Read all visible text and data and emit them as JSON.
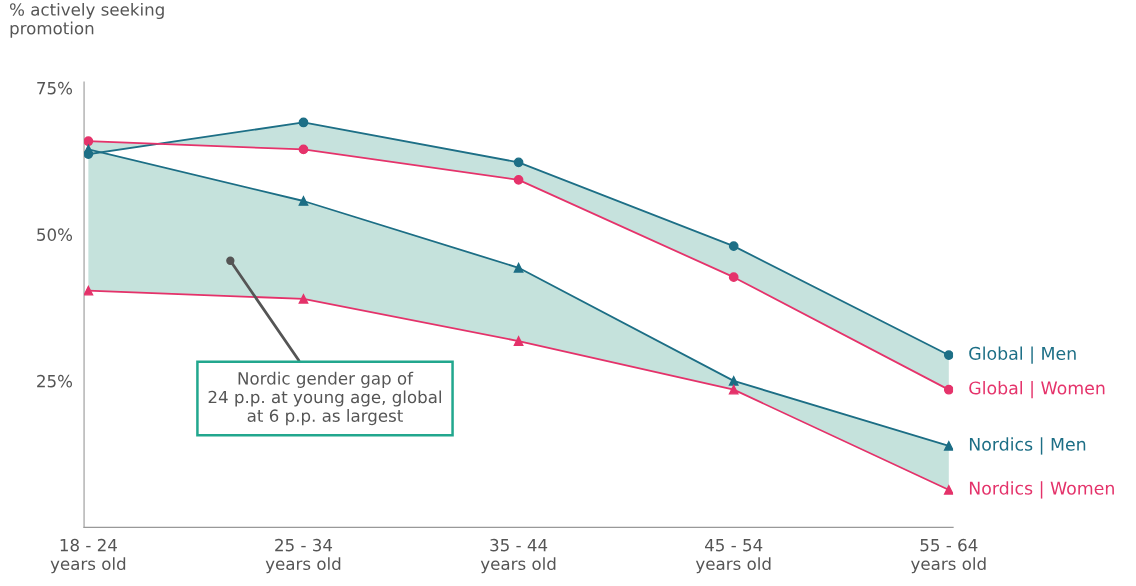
{
  "chart_data": {
    "type": "line",
    "ylabel": "% actively seeking\npromotion",
    "categories": [
      "18 - 24\nyears old",
      "25 - 34\nyears old",
      "35 - 44\nyears old",
      "45 - 54\nyears old",
      "55 - 64\nyears old"
    ],
    "series": [
      {
        "name": "Global | Men",
        "color": "#1d6f86",
        "marker": "circle",
        "values": [
          63.7,
          69.1,
          62.3,
          48.0,
          29.4
        ],
        "lower": [
          65.9,
          64.5,
          59.3,
          42.7,
          23.5
        ],
        "upper": [
          63.7,
          69.1,
          62.3,
          48.0,
          29.4
        ]
      },
      {
        "name": "Global | Women",
        "color": "#e5336b",
        "marker": "circle",
        "values": [
          65.9,
          64.5,
          59.3,
          42.7,
          23.5
        ]
      },
      {
        "name": "Nordics | Men",
        "color": "#1c6e85",
        "marker": "triangle",
        "values": [
          64.5,
          55.7,
          44.3,
          25.0,
          13.9
        ],
        "lower": [
          40.4,
          39.0,
          31.8,
          23.5,
          6.4
        ],
        "upper": [
          64.5,
          55.7,
          44.3,
          25.0,
          13.9
        ]
      },
      {
        "name": "Nordics | Women",
        "color": "#e4326a",
        "marker": "triangle",
        "values": [
          40.4,
          39.0,
          31.8,
          23.5,
          6.4
        ]
      }
    ],
    "ylim": [
      0,
      76
    ],
    "yticks": [
      {
        "value": 25,
        "label": "25%"
      },
      {
        "value": 50,
        "label": "50%"
      },
      {
        "value": 75,
        "label": "75%"
      }
    ],
    "grid": false,
    "legend": false,
    "annotations": [
      "Nordic gender gap of\n24 p.p. at young age, global\nat 6 p.p. as largest"
    ]
  }
}
